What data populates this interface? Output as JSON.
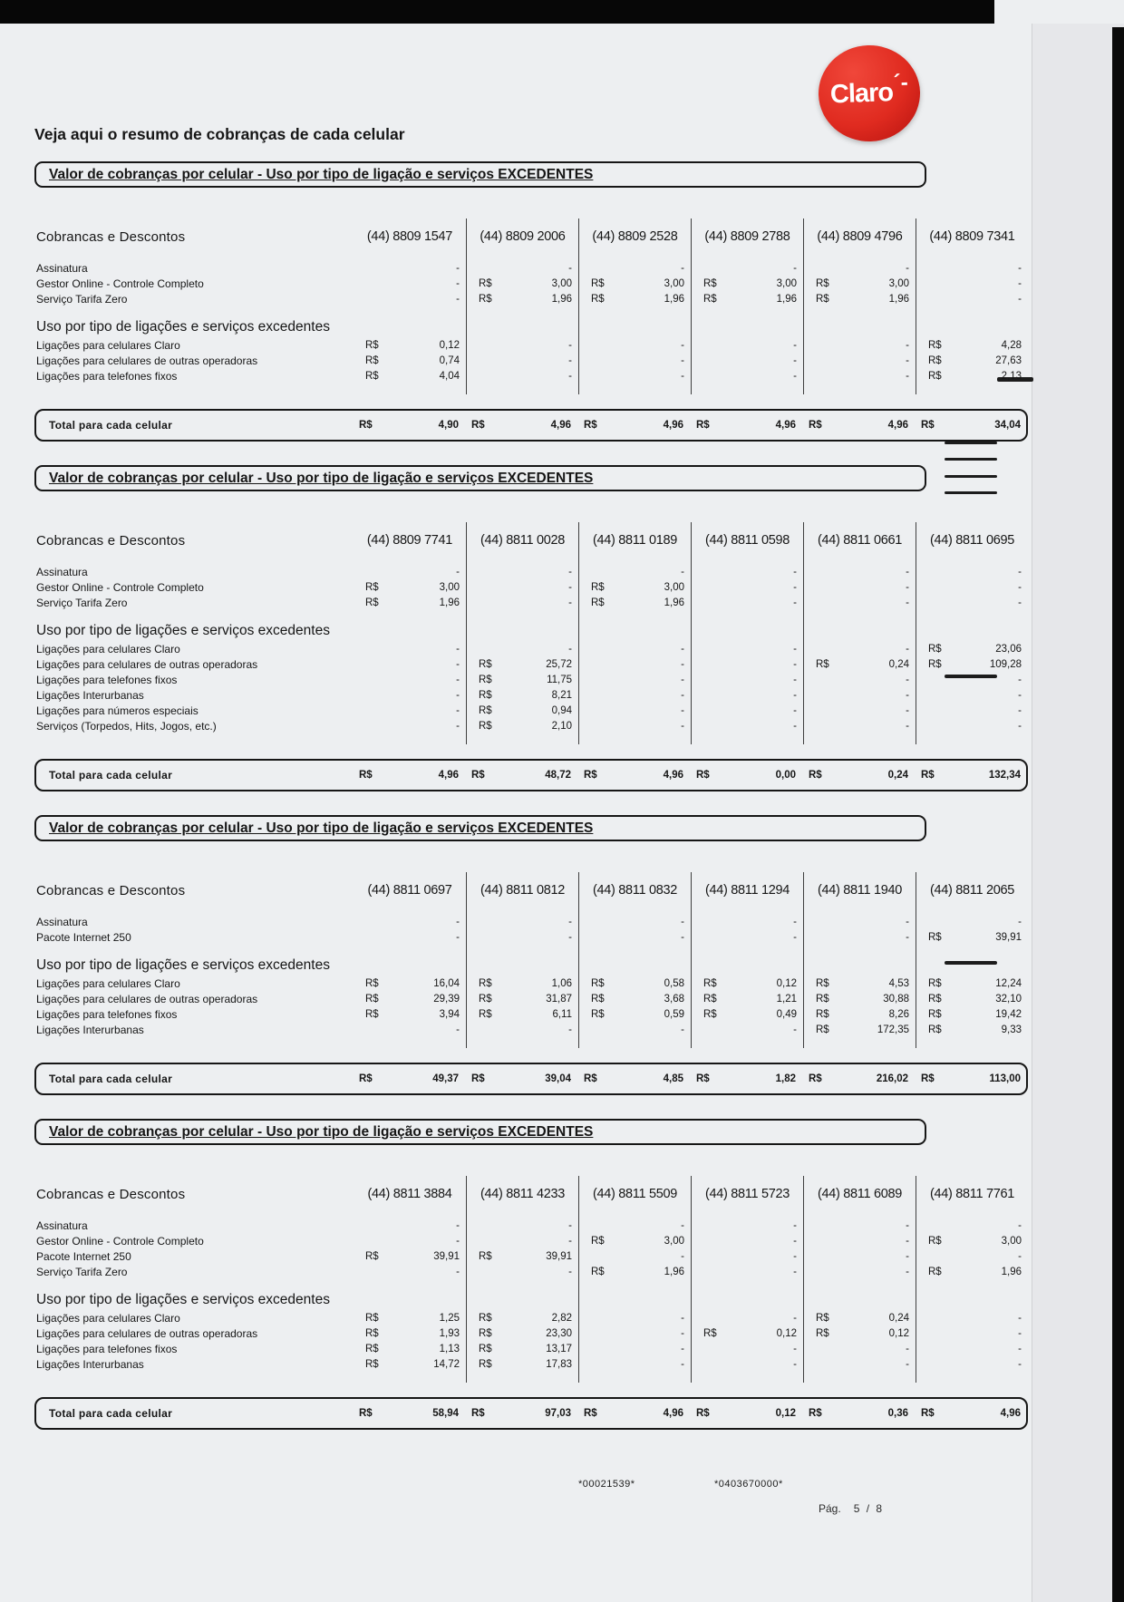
{
  "page": {
    "title": "Veja aqui o resumo de cobranças de cada celular",
    "logo_text": "Claro",
    "footer": {
      "code_left": "*00021539*",
      "code_right": "*0403670000*",
      "page_label": "Pág.",
      "page_value": "5 /  8"
    }
  },
  "labels": {
    "section_header": "Valor de cobranças por celular - Uso por tipo de ligação e serviços EXCEDENTES",
    "col_header": "Cobrancas e Descontos",
    "usage_header": "Uso por tipo de ligações e serviços excedentes",
    "total_label": "Total para cada celular",
    "currency": "R$"
  },
  "sections": [
    {
      "phones": [
        "(44) 8809 1547",
        "(44) 8809 2006",
        "(44) 8809 2528",
        "(44) 8809 2788",
        "(44) 8809 4796",
        "(44) 8809 7341"
      ],
      "service_rows": [
        {
          "label": "Assinatura",
          "values": [
            "-",
            "-",
            "-",
            "-",
            "-",
            "-"
          ]
        },
        {
          "label": "Gestor Online - Controle Completo",
          "values": [
            "-",
            "R$ 3,00",
            "R$ 3,00",
            "R$ 3,00",
            "R$ 3,00",
            "-"
          ]
        },
        {
          "label": "Serviço Tarifa Zero",
          "values": [
            "-",
            "R$ 1,96",
            "R$ 1,96",
            "R$ 1,96",
            "R$ 1,96",
            "-"
          ]
        }
      ],
      "usage_rows": [
        {
          "label": "Ligações para celulares Claro",
          "values": [
            "R$ 0,12",
            "-",
            "-",
            "-",
            "-",
            "R$ 4,28"
          ]
        },
        {
          "label": "Ligações para celulares de outras operadoras",
          "values": [
            "R$ 0,74",
            "-",
            "-",
            "-",
            "-",
            "R$ 27,63"
          ]
        },
        {
          "label": "Ligações para telefones fixos",
          "values": [
            "R$ 4,04",
            "-",
            "-",
            "-",
            "-",
            "R$ 2,13"
          ]
        }
      ],
      "totals": [
        "R$ 4,90",
        "R$ 4,96",
        "R$ 4,96",
        "R$ 4,96",
        "R$ 4,96",
        "R$ 34,04"
      ]
    },
    {
      "phones": [
        "(44) 8809 7741",
        "(44) 8811 0028",
        "(44) 8811 0189",
        "(44) 8811 0598",
        "(44) 8811 0661",
        "(44) 8811 0695"
      ],
      "service_rows": [
        {
          "label": "Assinatura",
          "values": [
            "-",
            "-",
            "-",
            "-",
            "-",
            "-"
          ]
        },
        {
          "label": "Gestor Online - Controle Completo",
          "values": [
            "R$ 3,00",
            "-",
            "R$ 3,00",
            "-",
            "-",
            "-"
          ]
        },
        {
          "label": "Serviço Tarifa Zero",
          "values": [
            "R$ 1,96",
            "-",
            "R$ 1,96",
            "-",
            "-",
            "-"
          ]
        }
      ],
      "usage_rows": [
        {
          "label": "Ligações para celulares Claro",
          "values": [
            "-",
            "-",
            "-",
            "-",
            "-",
            "R$ 23,06"
          ]
        },
        {
          "label": "Ligações para celulares de outras operadoras",
          "values": [
            "-",
            "R$ 25,72",
            "-",
            "-",
            "R$ 0,24",
            "R$ 109,28"
          ]
        },
        {
          "label": "Ligações para telefones fixos",
          "values": [
            "-",
            "R$ 11,75",
            "-",
            "-",
            "-",
            "-"
          ]
        },
        {
          "label": "Ligações Interurbanas",
          "values": [
            "-",
            "R$ 8,21",
            "-",
            "-",
            "-",
            "-"
          ]
        },
        {
          "label": "Ligações para números especiais",
          "values": [
            "-",
            "R$ 0,94",
            "-",
            "-",
            "-",
            "-"
          ]
        },
        {
          "label": "Serviços (Torpedos, Hits, Jogos, etc.)",
          "values": [
            "-",
            "R$ 2,10",
            "-",
            "-",
            "-",
            "-"
          ]
        }
      ],
      "totals": [
        "R$ 4,96",
        "R$ 48,72",
        "R$ 4,96",
        "R$ 0,00",
        "R$ 0,24",
        "R$ 132,34"
      ]
    },
    {
      "phones": [
        "(44) 8811 0697",
        "(44) 8811 0812",
        "(44) 8811 0832",
        "(44) 8811 1294",
        "(44) 8811 1940",
        "(44) 8811 2065"
      ],
      "service_rows": [
        {
          "label": "Assinatura",
          "values": [
            "-",
            "-",
            "-",
            "-",
            "-",
            "-"
          ]
        },
        {
          "label": "Pacote Internet 250",
          "values": [
            "-",
            "-",
            "-",
            "-",
            "-",
            "R$ 39,91"
          ]
        }
      ],
      "usage_rows": [
        {
          "label": "Ligações para celulares Claro",
          "values": [
            "R$ 16,04",
            "R$ 1,06",
            "R$ 0,58",
            "R$ 0,12",
            "R$ 4,53",
            "R$ 12,24"
          ]
        },
        {
          "label": "Ligações para celulares de outras operadoras",
          "values": [
            "R$ 29,39",
            "R$ 31,87",
            "R$ 3,68",
            "R$ 1,21",
            "R$ 30,88",
            "R$ 32,10"
          ]
        },
        {
          "label": "Ligações para telefones fixos",
          "values": [
            "R$ 3,94",
            "R$ 6,11",
            "R$ 0,59",
            "R$ 0,49",
            "R$ 8,26",
            "R$ 19,42"
          ]
        },
        {
          "label": "Ligações Interurbanas",
          "values": [
            "-",
            "-",
            "-",
            "-",
            "R$ 172,35",
            "R$ 9,33"
          ]
        }
      ],
      "totals": [
        "R$ 49,37",
        "R$ 39,04",
        "R$ 4,85",
        "R$ 1,82",
        "R$ 216,02",
        "R$ 113,00"
      ]
    },
    {
      "phones": [
        "(44) 8811 3884",
        "(44) 8811 4233",
        "(44) 8811 5509",
        "(44) 8811 5723",
        "(44) 8811 6089",
        "(44) 8811 7761"
      ],
      "service_rows": [
        {
          "label": "Assinatura",
          "values": [
            "-",
            "-",
            "-",
            "-",
            "-",
            "-"
          ]
        },
        {
          "label": "Gestor Online - Controle Completo",
          "values": [
            "-",
            "-",
            "R$ 3,00",
            "-",
            "-",
            "R$ 3,00"
          ]
        },
        {
          "label": "Pacote Internet 250",
          "values": [
            "R$ 39,91",
            "R$ 39,91",
            "-",
            "-",
            "-",
            "-"
          ]
        },
        {
          "label": "Serviço Tarifa Zero",
          "values": [
            "-",
            "-",
            "R$ 1,96",
            "-",
            "-",
            "R$ 1,96"
          ]
        }
      ],
      "usage_rows": [
        {
          "label": "Ligações para celulares Claro",
          "values": [
            "R$ 1,25",
            "R$ 2,82",
            "-",
            "-",
            "R$ 0,24",
            "-"
          ]
        },
        {
          "label": "Ligações para celulares de outras operadoras",
          "values": [
            "R$ 1,93",
            "R$ 23,30",
            "-",
            "R$ 0,12",
            "R$ 0,12",
            "-"
          ]
        },
        {
          "label": "Ligações para telefones fixos",
          "values": [
            "R$ 1,13",
            "R$ 13,17",
            "-",
            "-",
            "-",
            "-"
          ]
        },
        {
          "label": "Ligações Interurbanas",
          "values": [
            "R$ 14,72",
            "R$ 17,83",
            "-",
            "-",
            "-",
            "-"
          ]
        }
      ],
      "totals": [
        "R$ 58,94",
        "R$ 97,03",
        "R$ 4,96",
        "R$ 0,12",
        "R$ 0,36",
        "R$ 4,96"
      ]
    }
  ]
}
